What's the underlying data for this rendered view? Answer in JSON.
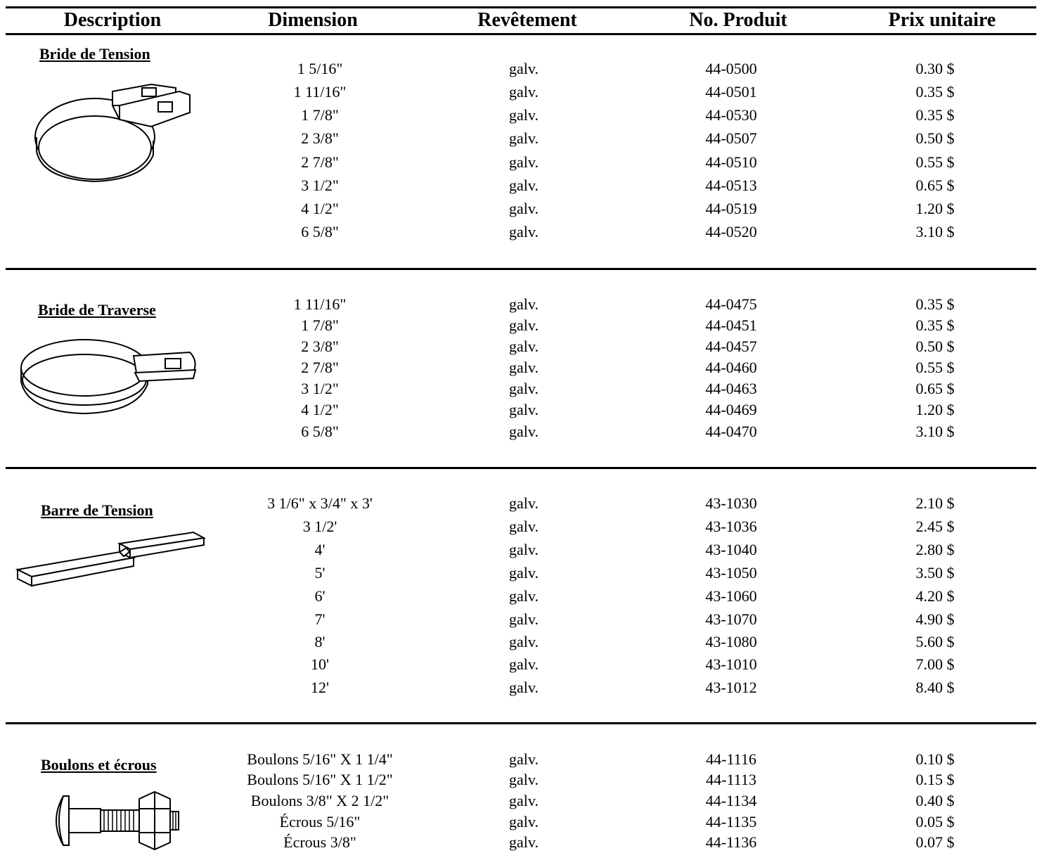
{
  "headers": {
    "description": "Description",
    "dimension": "Dimension",
    "revetement": "Revêtement",
    "produit": "No. Produit",
    "prix": "Prix unitaire"
  },
  "sections": [
    {
      "title": "Bride de Tension",
      "rows": [
        {
          "dim": "1 5/16\"",
          "rev": "galv.",
          "no": "44-0500",
          "prix": "0.30 $"
        },
        {
          "dim": "1 11/16\"",
          "rev": "galv.",
          "no": "44-0501",
          "prix": "0.35 $"
        },
        {
          "dim": "1 7/8\"",
          "rev": "galv.",
          "no": "44-0530",
          "prix": "0.35 $"
        },
        {
          "dim": "2 3/8\"",
          "rev": "galv.",
          "no": "44-0507",
          "prix": "0.50 $"
        },
        {
          "dim": "2 7/8\"",
          "rev": "galv.",
          "no": "44-0510",
          "prix": "0.55 $"
        },
        {
          "dim": "3 1/2\"",
          "rev": "galv.",
          "no": "44-0513",
          "prix": "0.65 $"
        },
        {
          "dim": "4 1/2\"",
          "rev": "galv.",
          "no": "44-0519",
          "prix": "1.20 $"
        },
        {
          "dim": "6 5/8\"",
          "rev": "galv.",
          "no": "44-0520",
          "prix": "3.10 $"
        }
      ]
    },
    {
      "title": "Bride de Traverse",
      "rows": [
        {
          "dim": "1 11/16\"",
          "rev": "galv.",
          "no": "44-0475",
          "prix": "0.35 $"
        },
        {
          "dim": "1 7/8\"",
          "rev": "galv.",
          "no": "44-0451",
          "prix": "0.35 $"
        },
        {
          "dim": "2 3/8\"",
          "rev": "galv.",
          "no": "44-0457",
          "prix": "0.50 $"
        },
        {
          "dim": "2 7/8\"",
          "rev": "galv.",
          "no": "44-0460",
          "prix": "0.55 $"
        },
        {
          "dim": "3 1/2\"",
          "rev": "galv.",
          "no": "44-0463",
          "prix": "0.65 $"
        },
        {
          "dim": "4 1/2\"",
          "rev": "galv.",
          "no": "44-0469",
          "prix": "1.20 $"
        },
        {
          "dim": "6 5/8\"",
          "rev": "galv.",
          "no": "44-0470",
          "prix": "3.10 $"
        }
      ]
    },
    {
      "title": "Barre de Tension",
      "rows": [
        {
          "dim": "3 1/6\" x 3/4\" x 3'",
          "rev": "galv.",
          "no": "43-1030",
          "prix": "2.10 $"
        },
        {
          "dim": "3 1/2'",
          "rev": "galv.",
          "no": "43-1036",
          "prix": "2.45 $"
        },
        {
          "dim": "4'",
          "rev": "galv.",
          "no": "43-1040",
          "prix": "2.80 $"
        },
        {
          "dim": "5'",
          "rev": "galv.",
          "no": "43-1050",
          "prix": "3.50 $"
        },
        {
          "dim": "6'",
          "rev": "galv.",
          "no": "43-1060",
          "prix": "4.20 $"
        },
        {
          "dim": "7'",
          "rev": "galv.",
          "no": "43-1070",
          "prix": "4.90 $"
        },
        {
          "dim": "8'",
          "rev": "galv.",
          "no": "43-1080",
          "prix": "5.60 $"
        },
        {
          "dim": "10'",
          "rev": "galv.",
          "no": "43-1010",
          "prix": "7.00 $"
        },
        {
          "dim": "12'",
          "rev": "galv.",
          "no": "43-1012",
          "prix": "8.40 $"
        }
      ]
    },
    {
      "title": "Boulons et écrous",
      "rows": [
        {
          "dim": "Boulons 5/16\" X 1 1/4\"",
          "rev": "galv.",
          "no": "44-1116",
          "prix": "0.10 $"
        },
        {
          "dim": "Boulons 5/16\" X 1 1/2\"",
          "rev": "galv.",
          "no": "44-1113",
          "prix": "0.15 $"
        },
        {
          "dim": "Boulons 3/8\" X 2 1/2\"",
          "rev": "galv.",
          "no": "44-1134",
          "prix": "0.40 $"
        },
        {
          "dim": "Écrous 5/16\"",
          "rev": "galv.",
          "no": "44-1135",
          "prix": "0.05 $"
        },
        {
          "dim": "Écrous 3/8\"",
          "rev": "galv.",
          "no": "44-1136",
          "prix": "0.07 $"
        }
      ]
    }
  ]
}
